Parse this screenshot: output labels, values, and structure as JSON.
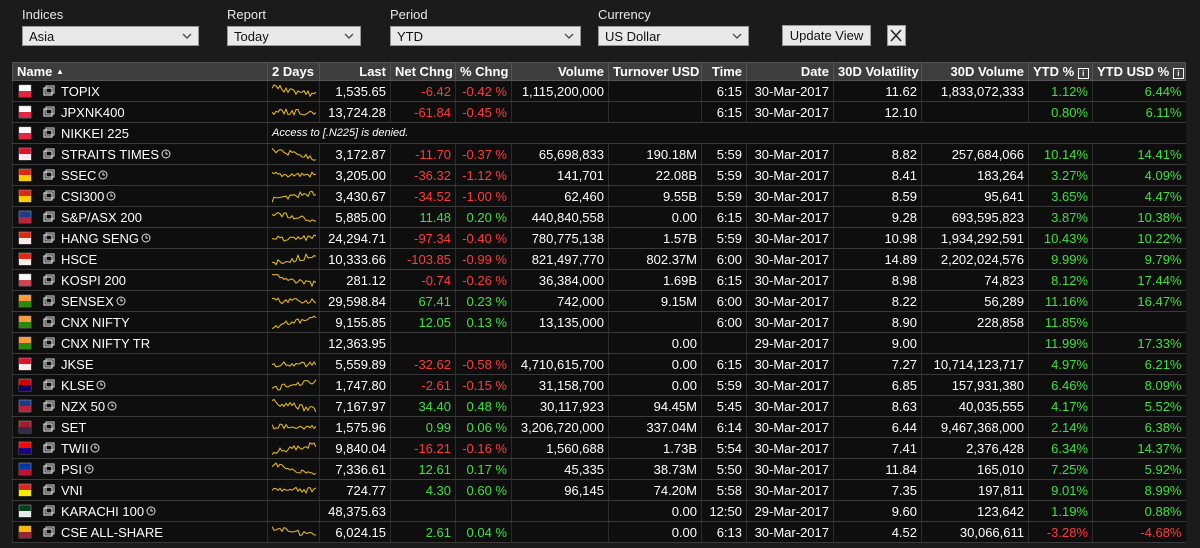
{
  "controls": [
    {
      "label": "Indices",
      "value": "Asia"
    },
    {
      "label": "Report",
      "value": "Today"
    },
    {
      "label": "Period",
      "value": "YTD"
    },
    {
      "label": "Currency",
      "value": "US Dollar"
    }
  ],
  "update_button": "Update View",
  "table": {
    "columns": [
      "Name",
      "2 Days",
      "Last",
      "Net Chng",
      "% Chng",
      "Volume",
      "Turnover USD",
      "Time",
      "Date",
      "30D Volatility",
      "30D Volume",
      "YTD %",
      "YTD USD %"
    ],
    "rows": [
      {
        "name": "TOPIX",
        "flag": [
          "#ffffff",
          "#e0102b"
        ],
        "clock": false,
        "cells": [
          "1,535.65",
          "-6.42",
          "-0.42 %",
          "1,115,200,000",
          null,
          "6:15",
          "30-Mar-2017",
          "11.62",
          "1,833,072,333",
          "1.12%",
          "6.44%"
        ]
      },
      {
        "name": "JPXNK400",
        "flag": [
          "#ffffff",
          "#e0102b"
        ],
        "clock": false,
        "cells": [
          "13,724.28",
          "-61.84",
          "-0.45 %",
          null,
          null,
          "6:15",
          "30-Mar-2017",
          "12.10",
          null,
          "0.80%",
          "6.11%"
        ]
      },
      {
        "name": "NIKKEI 225",
        "flag": [
          "#ffffff",
          "#e0102b"
        ],
        "clock": false,
        "message": "Access to [.N225] is denied."
      },
      {
        "name": "STRAITS TIMES",
        "flag": [
          "#e0102b",
          "#ffffff"
        ],
        "clock": true,
        "cells": [
          "3,172.87",
          "-11.70",
          "-0.37 %",
          "65,698,833",
          "190.18M",
          "5:59",
          "30-Mar-2017",
          "8.82",
          "257,684,066",
          "10.14%",
          "14.41%"
        ]
      },
      {
        "name": "SSEC",
        "flag": [
          "#de2910",
          "#ffde00"
        ],
        "clock": true,
        "cells": [
          "3,205.00",
          "-36.32",
          "-1.12 %",
          "141,701",
          "22.08B",
          "5:59",
          "30-Mar-2017",
          "8.41",
          "183,264",
          "3.27%",
          "4.09%"
        ]
      },
      {
        "name": "CSI300",
        "flag": [
          "#de2910",
          "#ffde00"
        ],
        "clock": true,
        "cells": [
          "3,430.67",
          "-34.52",
          "-1.00 %",
          "62,460",
          "9.55B",
          "5:59",
          "30-Mar-2017",
          "8.59",
          "95,641",
          "3.65%",
          "4.47%"
        ]
      },
      {
        "name": "S&P/ASX 200",
        "flag": [
          "#1a3b8c",
          "#cc2233"
        ],
        "clock": false,
        "cells": [
          "5,885.00",
          "11.48",
          "0.20 %",
          "440,840,558",
          "0.00",
          "6:15",
          "30-Mar-2017",
          "9.28",
          "693,595,823",
          "3.87%",
          "10.38%"
        ]
      },
      {
        "name": "HANG SENG",
        "flag": [
          "#de2910",
          "#ffffff"
        ],
        "clock": true,
        "cells": [
          "24,294.71",
          "-97.34",
          "-0.40 %",
          "780,775,138",
          "1.57B",
          "5:59",
          "30-Mar-2017",
          "10.98",
          "1,934,292,591",
          "10.43%",
          "10.22%"
        ]
      },
      {
        "name": "HSCE",
        "flag": [
          "#de2910",
          "#ffffff"
        ],
        "clock": false,
        "cells": [
          "10,333.66",
          "-103.85",
          "-0.99 %",
          "821,497,770",
          "802.37M",
          "6:00",
          "30-Mar-2017",
          "14.89",
          "2,202,024,576",
          "9.99%",
          "9.79%"
        ]
      },
      {
        "name": "KOSPI 200",
        "flag": [
          "#ffffff",
          "#cd2e3a"
        ],
        "clock": false,
        "cells": [
          "281.12",
          "-0.74",
          "-0.26 %",
          "36,384,000",
          "1.69B",
          "6:15",
          "30-Mar-2017",
          "8.98",
          "74,823",
          "8.12%",
          "17.44%"
        ]
      },
      {
        "name": "SENSEX",
        "flag": [
          "#ff9933",
          "#138808"
        ],
        "clock": true,
        "cells": [
          "29,598.84",
          "67.41",
          "0.23 %",
          "742,000",
          "9.15M",
          "6:00",
          "30-Mar-2017",
          "8.22",
          "56,289",
          "11.16%",
          "16.47%"
        ]
      },
      {
        "name": "CNX NIFTY",
        "flag": [
          "#ff9933",
          "#138808"
        ],
        "clock": false,
        "cells": [
          "9,155.85",
          "12.05",
          "0.13 %",
          "13,135,000",
          null,
          "6:00",
          "30-Mar-2017",
          "8.90",
          "228,858",
          "11.85%",
          null
        ]
      },
      {
        "name": "CNX NIFTY TR",
        "flag": [
          "#ff9933",
          "#138808"
        ],
        "clock": false,
        "nospark": true,
        "cells": [
          "12,363.95",
          null,
          null,
          null,
          "0.00",
          null,
          "29-Mar-2017",
          "9.00",
          null,
          "11.99%",
          "17.33%"
        ]
      },
      {
        "name": "JKSE",
        "flag": [
          "#e0102b",
          "#ffffff"
        ],
        "clock": false,
        "cells": [
          "5,559.89",
          "-32.62",
          "-0.58 %",
          "4,710,615,700",
          "0.00",
          "6:15",
          "30-Mar-2017",
          "7.27",
          "10,714,123,717",
          "4.97%",
          "6.21%"
        ]
      },
      {
        "name": "KLSE",
        "flag": [
          "#cc0001",
          "#010066"
        ],
        "clock": true,
        "cells": [
          "1,747.80",
          "-2.61",
          "-0.15 %",
          "31,158,700",
          "0.00",
          "5:59",
          "30-Mar-2017",
          "6.85",
          "157,931,380",
          "6.46%",
          "8.09%"
        ]
      },
      {
        "name": "NZX 50",
        "flag": [
          "#1a3b8c",
          "#cc2233"
        ],
        "clock": true,
        "cells": [
          "7,167.97",
          "34.40",
          "0.48 %",
          "30,117,923",
          "94.45M",
          "5:45",
          "30-Mar-2017",
          "8.63",
          "40,035,555",
          "4.17%",
          "5.52%"
        ]
      },
      {
        "name": "SET",
        "flag": [
          "#a51931",
          "#2d2a4a"
        ],
        "clock": false,
        "cells": [
          "1,575.96",
          "0.99",
          "0.06 %",
          "3,206,720,000",
          "337.04M",
          "6:14",
          "30-Mar-2017",
          "6.44",
          "9,467,368,000",
          "2.14%",
          "6.38%"
        ]
      },
      {
        "name": "TWII",
        "flag": [
          "#fe0000",
          "#000095"
        ],
        "clock": true,
        "cells": [
          "9,840.04",
          "-16.21",
          "-0.16 %",
          "1,560,688",
          "1.73B",
          "5:54",
          "30-Mar-2017",
          "7.41",
          "2,376,428",
          "6.34%",
          "14.37%"
        ]
      },
      {
        "name": "PSI",
        "flag": [
          "#0038a8",
          "#ce1126"
        ],
        "clock": true,
        "cells": [
          "7,336.61",
          "12.61",
          "0.17 %",
          "45,335",
          "38.73M",
          "5:50",
          "30-Mar-2017",
          "11.84",
          "165,010",
          "7.25%",
          "5.92%"
        ]
      },
      {
        "name": "VNI",
        "flag": [
          "#da251d",
          "#ffff00"
        ],
        "clock": false,
        "cells": [
          "724.77",
          "4.30",
          "0.60 %",
          "96,145",
          "74.20M",
          "5:58",
          "30-Mar-2017",
          "7.35",
          "197,811",
          "9.01%",
          "8.99%"
        ]
      },
      {
        "name": "KARACHI 100",
        "flag": [
          "#01411c",
          "#ffffff"
        ],
        "clock": true,
        "nospark": true,
        "cells": [
          "48,375.63",
          null,
          null,
          null,
          "0.00",
          "12:50",
          "29-Mar-2017",
          "9.60",
          "123,642",
          "1.19%",
          "0.88%"
        ]
      },
      {
        "name": "CSE ALL-SHARE",
        "flag": [
          "#ffb700",
          "#8d153a"
        ],
        "clock": false,
        "cells": [
          "6,024.15",
          "2.61",
          "0.04 %",
          null,
          "0.00",
          "6:13",
          "30-Mar-2017",
          "4.52",
          "30,066,611",
          "-3.28%",
          "-4.68%"
        ]
      }
    ]
  }
}
